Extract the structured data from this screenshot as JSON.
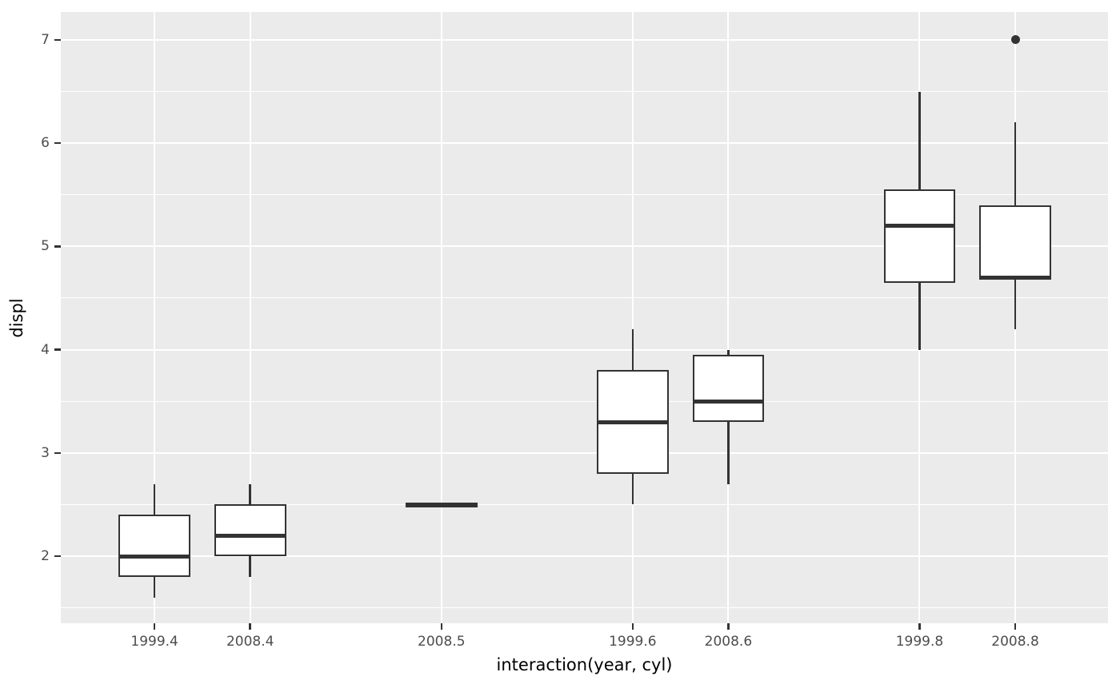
{
  "chart_data": {
    "type": "boxplot",
    "title": "",
    "xlabel": "interaction(year, cyl)",
    "ylabel": "displ",
    "ylim": [
      1.35,
      7.27
    ],
    "y_major_breaks": [
      2,
      3,
      4,
      5,
      6,
      7
    ],
    "y_minor_breaks": [
      1.5,
      2.5,
      3.5,
      4.5,
      5.5,
      6.5
    ],
    "x_slot_range": [
      -0.98,
      9.97
    ],
    "box_width_fraction": 0.75,
    "grid": "on",
    "legend": "none",
    "categories": [
      "1999.4",
      "2008.4",
      "2008.5",
      "1999.6",
      "2008.6",
      "1999.8",
      "2008.8"
    ],
    "series": [
      {
        "label": "1999.4",
        "slot": 0,
        "min": 1.6,
        "q1": 1.8,
        "median": 2.0,
        "q3": 2.4,
        "max": 2.7,
        "outliers": []
      },
      {
        "label": "2008.4",
        "slot": 1,
        "min": 1.8,
        "q1": 2.0,
        "median": 2.2,
        "q3": 2.5,
        "max": 2.7,
        "outliers": []
      },
      {
        "label": "2008.5",
        "slot": 3,
        "min": 2.5,
        "q1": 2.5,
        "median": 2.5,
        "q3": 2.5,
        "max": 2.5,
        "outliers": []
      },
      {
        "label": "1999.6",
        "slot": 5,
        "min": 2.5,
        "q1": 2.8,
        "median": 3.3,
        "q3": 3.8,
        "max": 4.2,
        "outliers": []
      },
      {
        "label": "2008.6",
        "slot": 6,
        "min": 2.7,
        "q1": 3.3,
        "median": 3.5,
        "q3": 3.95,
        "max": 4.0,
        "outliers": []
      },
      {
        "label": "1999.8",
        "slot": 8,
        "min": 4.0,
        "q1": 4.65,
        "median": 5.2,
        "q3": 5.55,
        "max": 6.5,
        "outliers": []
      },
      {
        "label": "2008.8",
        "slot": 9,
        "min": 4.2,
        "q1": 4.7,
        "median": 4.7,
        "q3": 5.4,
        "max": 6.2,
        "outliers": [
          7.0
        ]
      }
    ],
    "colors": {
      "panel_background": "#EBEBEB",
      "gridline": "#FFFFFF",
      "box_outline": "#333333",
      "box_fill": "#FFFFFF",
      "tick_label": "#4D4D4D",
      "axis_title": "#000000",
      "outlier_point": "#333333"
    }
  }
}
